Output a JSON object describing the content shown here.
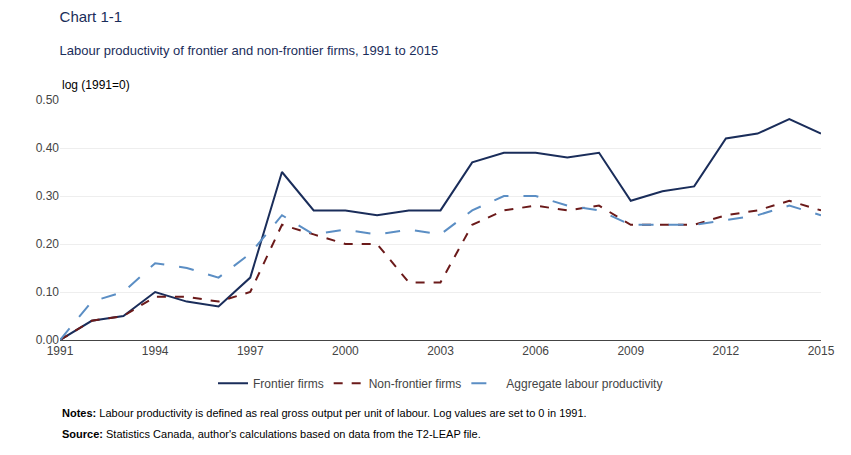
{
  "chart_data": {
    "type": "line",
    "title": "Chart 1-1",
    "subtitle": "Labour productivity of frontier and non-frontier firms, 1991 to 2015",
    "ylabel": "log (1991=0)",
    "x": [
      1991,
      1992,
      1993,
      1994,
      1995,
      1996,
      1997,
      1998,
      1999,
      2000,
      2001,
      2002,
      2003,
      2004,
      2005,
      2006,
      2007,
      2008,
      2009,
      2010,
      2011,
      2012,
      2013,
      2014,
      2015
    ],
    "series": [
      {
        "name": "Frontier firms",
        "color": "#1a2d5a",
        "line_style": "solid",
        "values": [
          0.0,
          0.04,
          0.05,
          0.1,
          0.08,
          0.07,
          0.13,
          0.35,
          0.27,
          0.27,
          0.26,
          0.27,
          0.27,
          0.37,
          0.39,
          0.39,
          0.38,
          0.39,
          0.29,
          0.31,
          0.32,
          0.42,
          0.43,
          0.46,
          0.43
        ]
      },
      {
        "name": "Non-frontier firms",
        "color": "#6b1a1a",
        "line_style": "dash",
        "values": [
          0.0,
          0.04,
          0.05,
          0.09,
          0.09,
          0.08,
          0.1,
          0.24,
          0.22,
          0.2,
          0.2,
          0.12,
          0.12,
          0.24,
          0.27,
          0.28,
          0.27,
          0.28,
          0.24,
          0.24,
          0.24,
          0.26,
          0.27,
          0.29,
          0.27
        ]
      },
      {
        "name": "Aggregate labour productivity",
        "color": "#5b8ec4",
        "line_style": "longdash",
        "values": [
          0.0,
          0.08,
          0.1,
          0.16,
          0.15,
          0.13,
          0.18,
          0.26,
          0.22,
          0.23,
          0.22,
          0.23,
          0.22,
          0.27,
          0.3,
          0.3,
          0.28,
          0.27,
          0.24,
          0.24,
          0.24,
          0.25,
          0.26,
          0.28,
          0.26
        ]
      }
    ],
    "xlim": [
      1991,
      2015
    ],
    "xticks": [
      1991,
      1994,
      1997,
      2000,
      2003,
      2006,
      2009,
      2012,
      2015
    ],
    "ylim": [
      0.0,
      0.5
    ],
    "yticks": [
      {
        "value": 0.0,
        "label": "0.00"
      },
      {
        "value": 0.1,
        "label": "0.10"
      },
      {
        "value": 0.2,
        "label": "0.20"
      },
      {
        "value": 0.3,
        "label": "0.30"
      },
      {
        "value": 0.4,
        "label": "0.40"
      },
      {
        "value": 0.5,
        "label": "0.50"
      }
    ],
    "grid": "y",
    "legend": "bottom",
    "annotations": [
      "Notes: Labour productivity is defined as real gross output per unit of labour. Log values are set to 0 in 1991.",
      "Source: Statistics Canada, author's calculations based on data from the T2-LEAP file."
    ]
  }
}
